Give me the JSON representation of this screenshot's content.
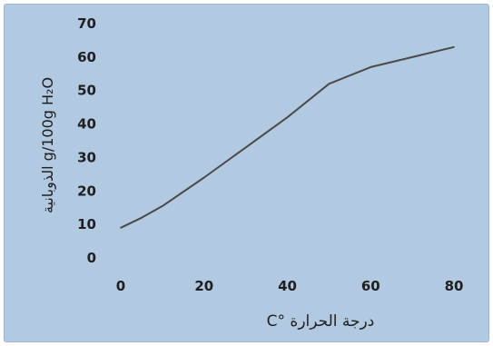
{
  "chart_data": {
    "type": "line",
    "title": "",
    "xlabel": "درجة الحرارة °C",
    "ylabel": "الذوبانية g/100g H₂O",
    "xlim": [
      0,
      80
    ],
    "ylim": [
      0,
      70
    ],
    "x_ticks": [
      "0",
      "20",
      "40",
      "60",
      "80"
    ],
    "y_ticks": [
      "0",
      "10",
      "20",
      "30",
      "40",
      "50",
      "60",
      "70"
    ],
    "grid": false,
    "series": [
      {
        "color": "#4a4a4a",
        "x": [
          0,
          5,
          10,
          20,
          30,
          40,
          50,
          60,
          70,
          80
        ],
        "y": [
          9,
          12,
          15.5,
          24,
          33,
          42,
          52,
          57,
          60,
          63
        ]
      }
    ]
  }
}
